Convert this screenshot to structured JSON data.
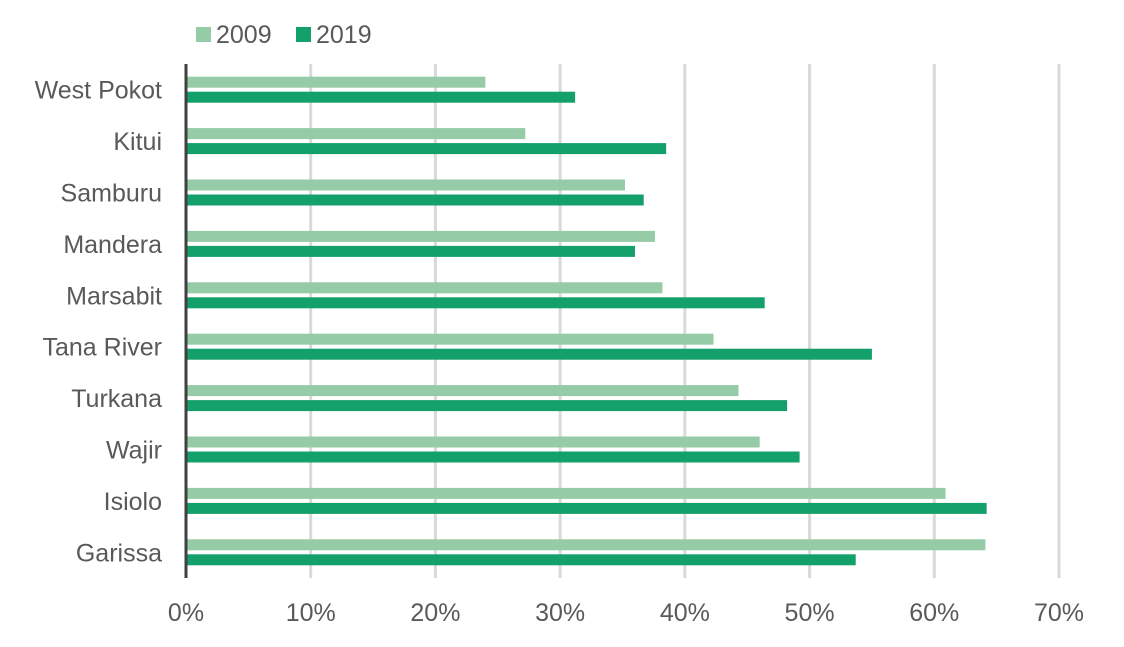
{
  "chart_data": {
    "type": "bar",
    "orientation": "horizontal",
    "categories": [
      "West Pokot",
      "Kitui",
      "Samburu",
      "Mandera",
      "Marsabit",
      "Tana River",
      "Turkana",
      "Wajir",
      "Isiolo",
      "Garissa"
    ],
    "series": [
      {
        "name": "2009",
        "color": "#95cba6",
        "values": [
          24.0,
          27.2,
          35.2,
          37.6,
          38.2,
          42.3,
          44.3,
          46.0,
          60.9,
          64.1
        ]
      },
      {
        "name": "2019",
        "color": "#14a06a",
        "values": [
          31.2,
          38.5,
          36.7,
          36.0,
          46.4,
          55.0,
          48.2,
          49.2,
          64.2,
          53.7
        ]
      }
    ],
    "xticks": [
      "0%",
      "10%",
      "20%",
      "30%",
      "40%",
      "50%",
      "60%",
      "70%"
    ],
    "xlim": [
      0,
      70
    ],
    "grid": true,
    "legend_position": "top-left",
    "title": "",
    "xlabel": "",
    "ylabel": ""
  }
}
